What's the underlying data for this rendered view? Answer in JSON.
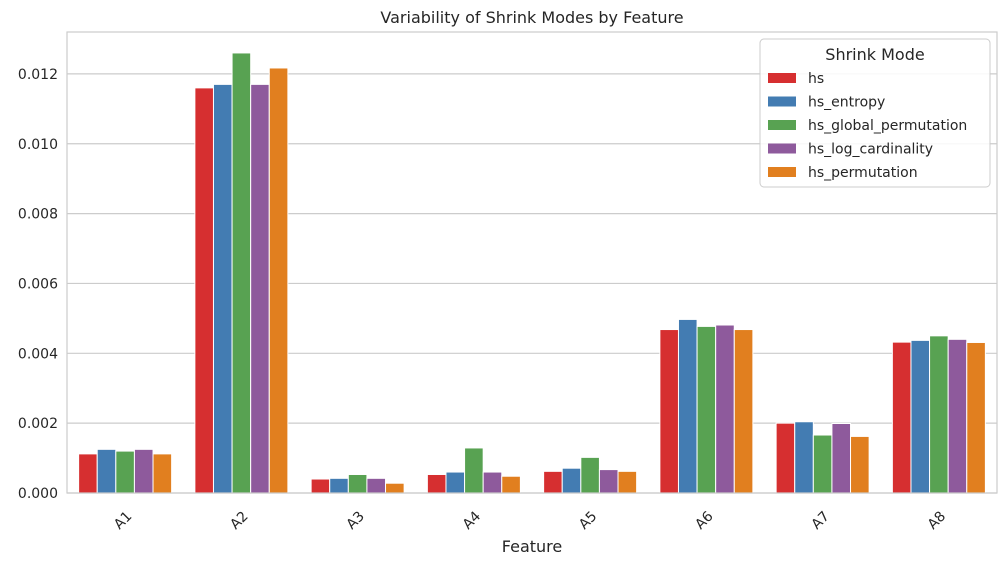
{
  "chart_data": {
    "type": "bar",
    "title": "Variability of Shrink Modes by Feature",
    "xlabel": "Feature",
    "ylabel": "",
    "categories": [
      "A1",
      "A2",
      "A3",
      "A4",
      "A5",
      "A6",
      "A7",
      "A8"
    ],
    "ylim": [
      0,
      0.0132
    ],
    "yticks": [
      "0.000",
      "0.002",
      "0.004",
      "0.006",
      "0.008",
      "0.010",
      "0.012"
    ],
    "grid": true,
    "legend": {
      "title": "Shrink Mode",
      "placement": "top-right"
    },
    "series": [
      {
        "name": "hs",
        "color": "#d62f30",
        "values": [
          0.00112,
          0.0116,
          0.0004,
          0.00053,
          0.00062,
          0.00468,
          0.002,
          0.00432
        ]
      },
      {
        "name": "hs_entropy",
        "color": "#437cb2",
        "values": [
          0.00125,
          0.0117,
          0.00042,
          0.0006,
          0.00071,
          0.00497,
          0.00204,
          0.00437
        ]
      },
      {
        "name": "hs_global_permutation",
        "color": "#58a252",
        "values": [
          0.0012,
          0.0126,
          0.00053,
          0.00129,
          0.00102,
          0.00477,
          0.00166,
          0.0045
        ]
      },
      {
        "name": "hs_log_cardinality",
        "color": "#8e5a9c",
        "values": [
          0.00125,
          0.0117,
          0.00042,
          0.0006,
          0.00067,
          0.00481,
          0.00199,
          0.0044
        ]
      },
      {
        "name": "hs_permutation",
        "color": "#e17f1f",
        "values": [
          0.00112,
          0.01217,
          0.00028,
          0.00048,
          0.00062,
          0.00468,
          0.00162,
          0.00431
        ]
      }
    ]
  }
}
